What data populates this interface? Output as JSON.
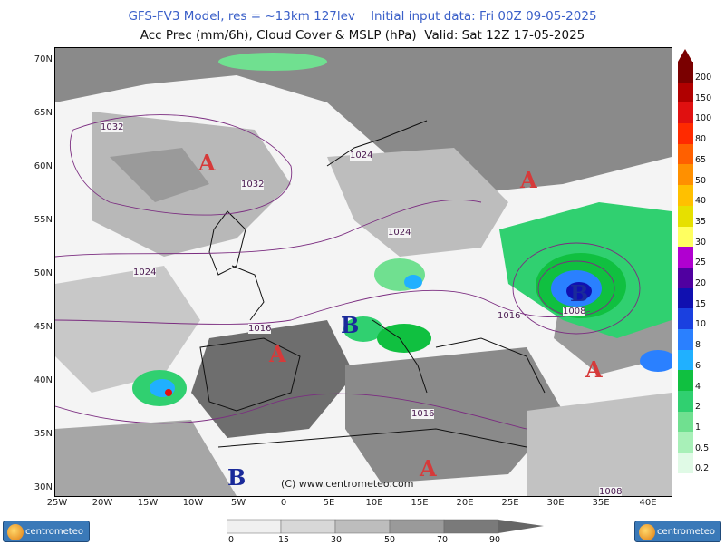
{
  "header": {
    "line1": "GFS-FV3 Model, res = ~13km 127lev    Initial input data: Fri 00Z 09-05-2025",
    "line2": "Acc Prec (mm/6h), Cloud Cover & MSLP (hPa)  Valid: Sat 12Z 17-05-2025"
  },
  "map": {
    "lat_labels": [
      "70N",
      "65N",
      "60N",
      "55N",
      "50N",
      "45N",
      "40N",
      "35N",
      "30N"
    ],
    "lon_labels": [
      "25W",
      "20W",
      "15W",
      "10W",
      "5W",
      "0",
      "5E",
      "10E",
      "15E",
      "20E",
      "25E",
      "30E",
      "35E",
      "40E"
    ],
    "pressure_centers": [
      {
        "label": "A",
        "type": "high"
      },
      {
        "label": "A",
        "type": "high"
      },
      {
        "label": "A",
        "type": "high"
      },
      {
        "label": "A",
        "type": "high"
      },
      {
        "label": "A",
        "type": "high"
      },
      {
        "label": "B",
        "type": "low"
      },
      {
        "label": "B",
        "type": "low"
      },
      {
        "label": "B",
        "type": "low"
      }
    ],
    "isobar_labels": [
      "1032",
      "1032",
      "1024",
      "1024",
      "1024",
      "1016",
      "1016",
      "1016",
      "1008",
      "1008"
    ],
    "copyright": "(C)  www.centrometeo.com"
  },
  "precip_legend": {
    "labels": [
      "200",
      "150",
      "100",
      "80",
      "65",
      "50",
      "40",
      "35",
      "30",
      "25",
      "20",
      "15",
      "10",
      "8",
      "6",
      "4",
      "2",
      "1",
      "0.5",
      "0.2"
    ],
    "colors": [
      "#7a0000",
      "#b00000",
      "#e01010",
      "#ff2a00",
      "#ff6000",
      "#ff9000",
      "#ffc000",
      "#e6e000",
      "#ffff60",
      "#b000d0",
      "#5000a0",
      "#1010b0",
      "#1a40e0",
      "#2a80ff",
      "#20b0ff",
      "#10c040",
      "#30d070",
      "#70e090",
      "#a8f0b8",
      "#e0fae6"
    ]
  },
  "cloud_legend": {
    "labels": [
      "0",
      "15",
      "30",
      "50",
      "70",
      "90"
    ]
  },
  "logos": {
    "left": "centrometeo",
    "right": "centrometeo"
  }
}
